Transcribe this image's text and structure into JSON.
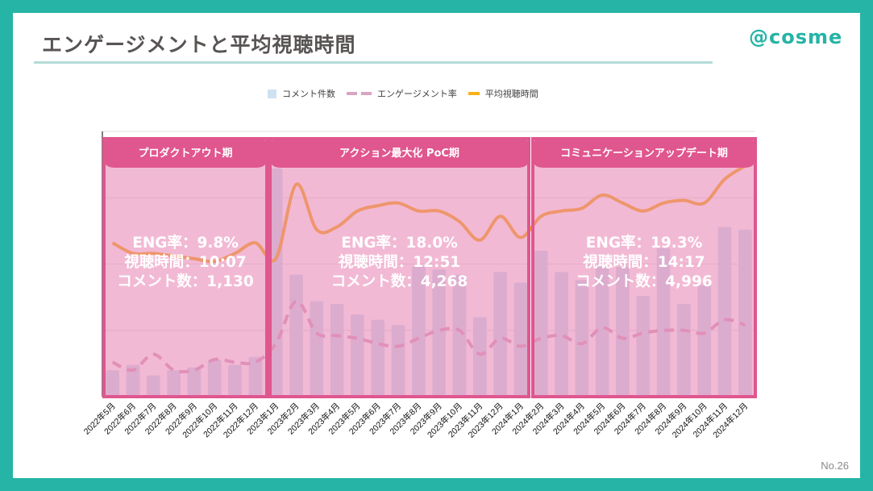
{
  "slide": {
    "title": "エンゲージメントと平均視聴時間",
    "logo": "@cosme",
    "page_number": "No.26"
  },
  "colors": {
    "frame": "#25b4a6",
    "title_rule": "#b5dcd8",
    "bars": "#cfe2f2",
    "eng_line": "#d9a4c2",
    "watch_line": "#f7b21a",
    "period_border": "#e0568f",
    "period_fill": "#e77fb0"
  },
  "chart_data": {
    "type": "bar",
    "title": "",
    "xlabel": "",
    "ylabel": "",
    "grid": true,
    "legend_position": "top-center",
    "note": "No y-axis tick labels are shown; values are relative (0-100 of plot height) estimated from the figure.",
    "ylim": [
      0,
      100
    ],
    "categories": [
      "2022年5月",
      "2022年6月",
      "2022年7月",
      "2022年8月",
      "2022年9月",
      "2022年10月",
      "2022年11月",
      "2022年12月",
      "2023年1月",
      "2023年2月",
      "2023年3月",
      "2023年4月",
      "2023年5月",
      "2023年6月",
      "2023年7月",
      "2023年8月",
      "2023年9月",
      "2023年10月",
      "2023年11月",
      "2023年12月",
      "2024年1月",
      "2024年2月",
      "2024年3月",
      "2024年4月",
      "2024年5月",
      "2024年6月",
      "2024年7月",
      "2024年8月",
      "2024年9月",
      "2024年10月",
      "2024年11月",
      "2024年12月"
    ],
    "series": [
      {
        "name": "コメント件数",
        "type": "bar",
        "values": [
          10,
          12,
          8,
          10,
          11,
          14,
          12,
          15,
          86,
          46,
          36,
          35,
          31,
          29,
          27,
          49,
          48,
          46,
          30,
          47,
          43,
          55,
          47,
          44,
          49,
          49,
          38,
          56,
          35,
          42,
          64,
          63
        ]
      },
      {
        "name": "エンゲージメント率",
        "type": "line-dashed",
        "values": [
          13,
          10,
          16,
          10,
          10,
          14,
          13,
          13,
          20,
          36,
          24,
          23,
          22,
          20,
          19,
          22,
          25,
          25,
          16,
          22,
          19,
          22,
          23,
          20,
          26,
          22,
          24,
          25,
          25,
          24,
          29,
          27
        ]
      },
      {
        "name": "平均視聴時間",
        "type": "line",
        "values": [
          58,
          54,
          54,
          53,
          52,
          51,
          54,
          58,
          52,
          80,
          63,
          64,
          70,
          72,
          73,
          70,
          70,
          66,
          59,
          68,
          60,
          68,
          70,
          71,
          76,
          73,
          70,
          73,
          74,
          73,
          82,
          87
        ]
      }
    ],
    "periods": [
      {
        "name": "プロダクトアウト期",
        "start": "2022年5月",
        "end": "2022年12月",
        "stats": [
          "ENG率：9.8%",
          "視聴時間：10:07",
          "コメント数：1,130"
        ]
      },
      {
        "name": "アクション最大化 PoC期",
        "start": "2023年1月",
        "end": "2024年1月",
        "stats": [
          "ENG率：18.0%",
          "視聴時間：12:51",
          "コメント数：4,268"
        ]
      },
      {
        "name": "コミュニケーションアップデート期",
        "start": "2024年2月",
        "end": "2024年12月",
        "stats": [
          "ENG率：19.3%",
          "視聴時間：14:17",
          "コメント数：4,996"
        ]
      }
    ]
  }
}
